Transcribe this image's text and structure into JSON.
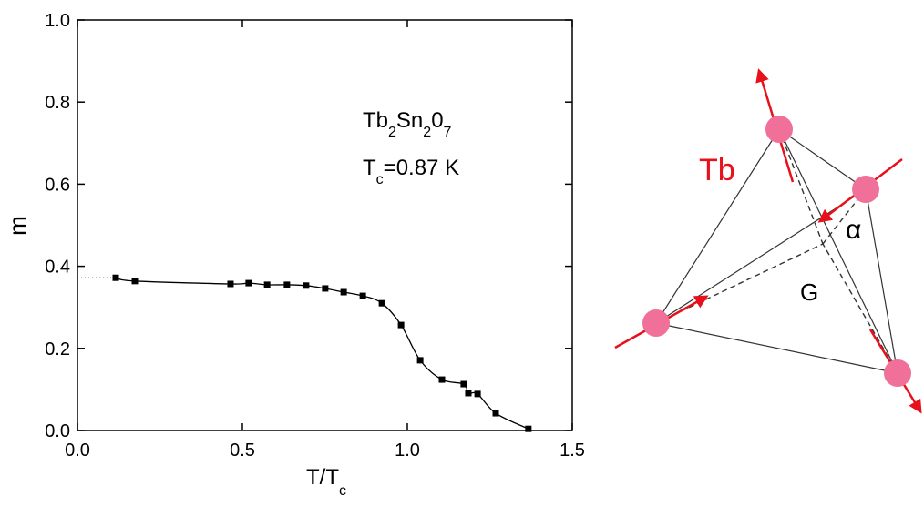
{
  "chart_data": {
    "type": "line",
    "xlabel": [
      "T/T",
      "c"
    ],
    "ylabel": "m",
    "annotations": [
      [
        "Tb",
        "2",
        "Sn",
        "2",
        "0",
        "7"
      ],
      [
        "T",
        "c",
        "=0.87 K"
      ]
    ],
    "xlim": [
      0,
      1.5
    ],
    "ylim": [
      0,
      1
    ],
    "xticks": [
      {
        "value": 0,
        "label": "0.0"
      },
      0.5,
      {
        "value": 1,
        "label": "1.0"
      },
      1.5
    ],
    "yticks": [
      {
        "value": 0,
        "label": "0.0"
      },
      0.2,
      0.4,
      0.6,
      0.8,
      {
        "value": 1,
        "label": "1.0"
      }
    ],
    "series": [
      {
        "color": "#000000",
        "x": [
          0.116,
          0.174,
          0.464,
          0.519,
          0.575,
          0.635,
          0.693,
          0.751,
          0.807,
          0.865,
          0.923,
          0.981,
          1.039,
          1.105,
          1.171,
          1.185,
          1.213,
          1.268,
          1.367
        ],
        "values": [
          0.372,
          0.364,
          0.357,
          0.359,
          0.355,
          0.355,
          0.353,
          0.346,
          0.337,
          0.328,
          0.31,
          0.257,
          0.171,
          0.124,
          0.113,
          0.091,
          0.089,
          0.042,
          0.004
        ]
      }
    ]
  },
  "diagram": {
    "labels": [
      "Tb",
      "α",
      "G"
    ]
  }
}
